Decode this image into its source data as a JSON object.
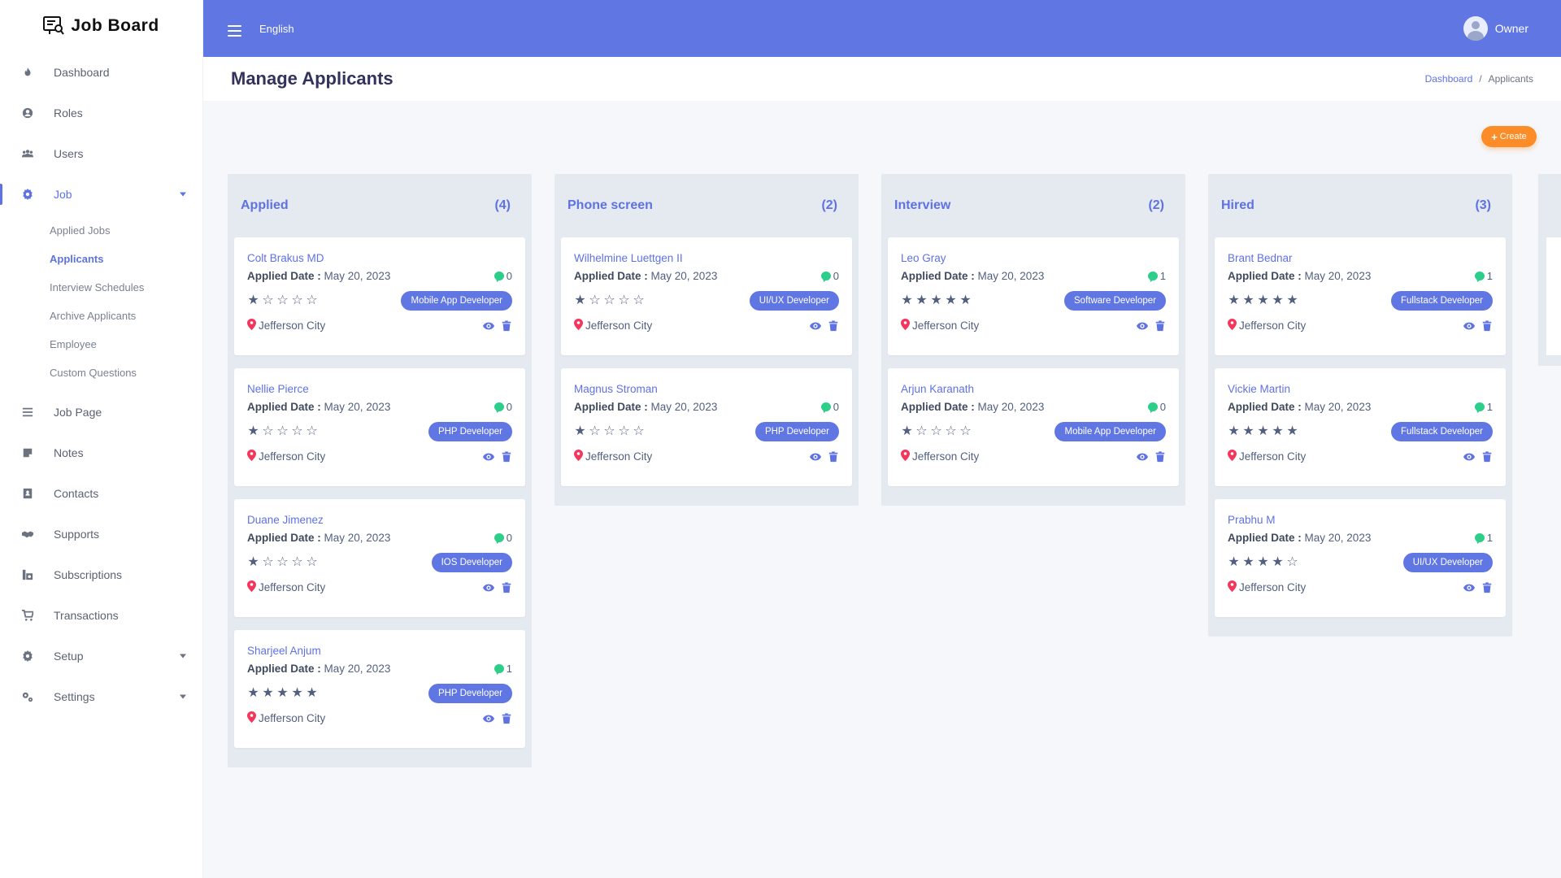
{
  "brand": {
    "name": "Job Board",
    "icon": "job-board-logo-icon"
  },
  "sidebar": {
    "items": [
      {
        "label": "Dashboard",
        "icon": "fire-icon"
      },
      {
        "label": "Roles",
        "icon": "user-circle-icon"
      },
      {
        "label": "Users",
        "icon": "users-icon"
      },
      {
        "label": "Job",
        "icon": "gear-icon",
        "active": true,
        "expanded": true
      },
      {
        "label": "Job Page",
        "icon": "list-icon"
      },
      {
        "label": "Notes",
        "icon": "note-icon"
      },
      {
        "label": "Contacts",
        "icon": "contact-book-icon"
      },
      {
        "label": "Supports",
        "icon": "handshake-icon"
      },
      {
        "label": "Subscriptions",
        "icon": "subscriptions-icon"
      },
      {
        "label": "Transactions",
        "icon": "cart-icon"
      },
      {
        "label": "Setup",
        "icon": "gear-icon"
      },
      {
        "label": "Settings",
        "icon": "gears-icon"
      }
    ],
    "job_sub": [
      "Applied Jobs",
      "Applicants",
      "Interview Schedules",
      "Archive Applicants",
      "Employee",
      "Custom Questions"
    ],
    "job_sub_active": "Applicants"
  },
  "topbar": {
    "language": "English",
    "user": "Owner"
  },
  "page": {
    "title": "Manage Applicants",
    "breadcrumb": [
      "Dashboard",
      "Applicants"
    ]
  },
  "create_label": "Create",
  "colors": {
    "primary": "#6076e2",
    "accent": "#fb8c27",
    "success": "#2dce89",
    "danger": "#f5365c"
  },
  "applied_date_label": "Applied Date :",
  "columns": [
    {
      "title": "Applied",
      "count": "(4)",
      "cards": [
        {
          "name": "Colt Brakus MD",
          "date": "May 20, 2023",
          "comments": "0",
          "rating": 1,
          "job": "Mobile App Developer",
          "location": "Jefferson City"
        },
        {
          "name": "Nellie Pierce",
          "date": "May 20, 2023",
          "comments": "0",
          "rating": 1,
          "job": "PHP Developer",
          "location": "Jefferson City"
        },
        {
          "name": "Duane Jimenez",
          "date": "May 20, 2023",
          "comments": "0",
          "rating": 1,
          "job": "IOS Developer",
          "location": "Jefferson City"
        },
        {
          "name": "Sharjeel Anjum",
          "date": "May 20, 2023",
          "comments": "1",
          "rating": 5,
          "job": "PHP Developer",
          "location": "Jefferson City"
        }
      ]
    },
    {
      "title": "Phone screen",
      "count": "(2)",
      "cards": [
        {
          "name": "Wilhelmine Luettgen II",
          "date": "May 20, 2023",
          "comments": "0",
          "rating": 1,
          "job": "UI/UX Developer",
          "location": "Jefferson City"
        },
        {
          "name": "Magnus Stroman",
          "date": "May 20, 2023",
          "comments": "0",
          "rating": 1,
          "job": "PHP Developer",
          "location": "Jefferson City"
        }
      ]
    },
    {
      "title": "Interview",
      "count": "(2)",
      "cards": [
        {
          "name": "Leo Gray",
          "date": "May 20, 2023",
          "comments": "1",
          "rating": 5,
          "job": "Software Developer",
          "location": "Jefferson City"
        },
        {
          "name": "Arjun Karanath",
          "date": "May 20, 2023",
          "comments": "0",
          "rating": 1,
          "job": "Mobile App Developer",
          "location": "Jefferson City"
        }
      ]
    },
    {
      "title": "Hired",
      "count": "(3)",
      "cards": [
        {
          "name": "Brant Bednar",
          "date": "May 20, 2023",
          "comments": "1",
          "rating": 5,
          "job": "Fullstack Developer",
          "location": "Jefferson City"
        },
        {
          "name": "Vickie Martin",
          "date": "May 20, 2023",
          "comments": "1",
          "rating": 5,
          "job": "Fullstack Developer",
          "location": "Jefferson City"
        },
        {
          "name": "Prabhu M",
          "date": "May 20, 2023",
          "comments": "1",
          "rating": 4,
          "job": "UI/UX Developer",
          "location": "Jefferson City"
        }
      ]
    }
  ]
}
